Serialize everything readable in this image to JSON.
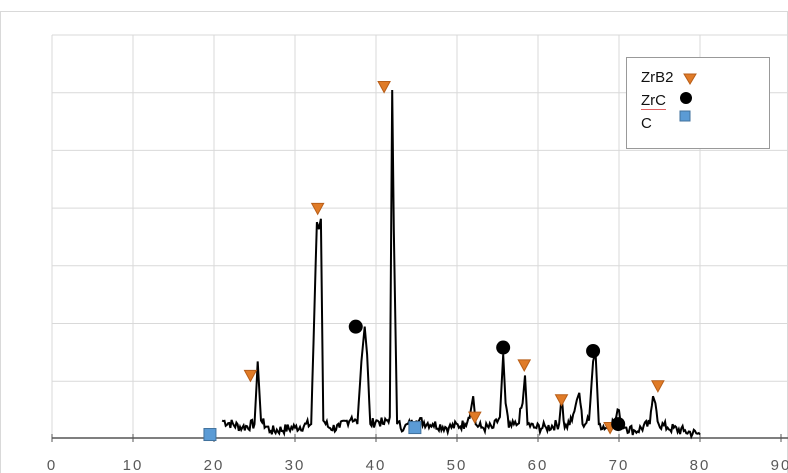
{
  "chart_data": {
    "type": "line",
    "title": "",
    "xlabel": "",
    "ylabel": "",
    "xlim": [
      0,
      90
    ],
    "xticks": [
      "0",
      "10",
      "20",
      "30",
      "40",
      "50",
      "60",
      "70",
      "80",
      "90"
    ],
    "ylim": [
      0,
      100
    ],
    "grid": true,
    "legend_position": "top-right",
    "line_color": "#000000",
    "pattern": {
      "x": [
        21,
        23.5,
        25,
        25.4,
        25.8,
        27,
        30,
        32,
        32.7,
        32.95,
        33.2,
        33.5,
        34.2,
        35.5,
        37,
        37.7,
        38.2,
        38.6,
        38.9,
        39.3,
        40.2,
        41,
        41.7,
        42,
        42.2,
        42.6,
        43.5,
        45,
        47,
        49,
        51,
        51.7,
        52,
        52.3,
        53,
        54.5,
        55.3,
        55.7,
        56,
        56.4,
        57.5,
        58.1,
        58.4,
        58.7,
        59.5,
        61,
        62.6,
        62.9,
        63.3,
        64.2,
        64.8,
        65.1,
        65.5,
        66.3,
        66.8,
        67.1,
        67.5,
        68.5,
        69.5,
        70,
        70.4,
        70.9,
        72,
        73.8,
        74.2,
        74.5,
        74.9,
        76,
        78,
        80
      ],
      "y": [
        5,
        3,
        4,
        22,
        5,
        2,
        3,
        4,
        62,
        60,
        63,
        5,
        3,
        3,
        6,
        4,
        22,
        32,
        24,
        4,
        5,
        4,
        6,
        100,
        60,
        4,
        3,
        5,
        4,
        3,
        4,
        8,
        12,
        4,
        3,
        3,
        6,
        24,
        10,
        3,
        4,
        10,
        18,
        4,
        3,
        3,
        4,
        12,
        3,
        5,
        11,
        13,
        4,
        5,
        22,
        25,
        4,
        3,
        5,
        8,
        4,
        3,
        2,
        4,
        12,
        10,
        4,
        3,
        2,
        1
      ]
    },
    "markers": {
      "ZrB2": {
        "x": [
          24.5,
          32.8,
          41,
          52.2,
          58.3,
          62.9,
          68.9,
          74.8
        ],
        "y": [
          18,
          66,
          101,
          6,
          21,
          11,
          3,
          15
        ]
      },
      "ZrC": {
        "x": [
          37.5,
          55.7,
          66.8,
          69.9
        ],
        "y": [
          32,
          26,
          25,
          4
        ]
      },
      "C": {
        "x": [
          19.5,
          44.8
        ],
        "y": [
          1,
          3
        ]
      }
    }
  },
  "legend": {
    "items": [
      {
        "label": "ZrB2",
        "marker": "triangle-down",
        "color": "#e07b27"
      },
      {
        "label": "ZrC",
        "marker": "circle",
        "color": "#000000"
      },
      {
        "label": "C",
        "marker": "square",
        "color": "#5b9bd5"
      }
    ]
  }
}
